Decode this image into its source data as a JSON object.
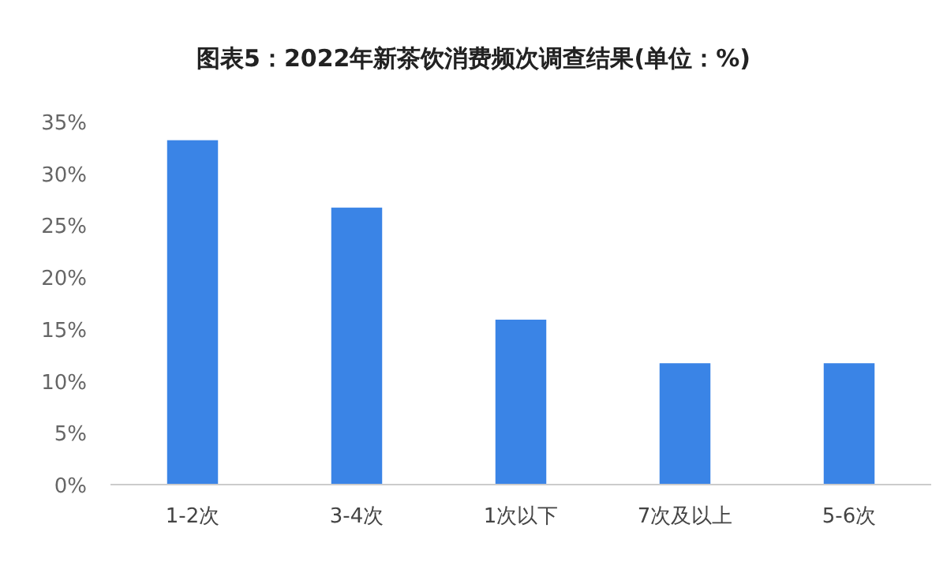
{
  "chart_data": {
    "type": "bar",
    "title": "图表5：2022年新茶饮消费频次调查结果(单位：%)",
    "categories": [
      "1-2次",
      "3-4次",
      "1次以下",
      "7次及以上",
      "5-6次"
    ],
    "values": [
      33.2,
      26.7,
      15.9,
      11.7,
      11.7
    ],
    "color": "#3a84e6",
    "ylim": [
      0,
      35
    ],
    "yticks": [
      {
        "value": 0,
        "label": "0%"
      },
      {
        "value": 5,
        "label": "5%"
      },
      {
        "value": 10,
        "label": "10%"
      },
      {
        "value": 15,
        "label": "15%"
      },
      {
        "value": 20,
        "label": "20%"
      },
      {
        "value": 25,
        "label": "25%"
      },
      {
        "value": 30,
        "label": "30%"
      },
      {
        "value": 35,
        "label": "35%"
      }
    ],
    "grid": false
  }
}
